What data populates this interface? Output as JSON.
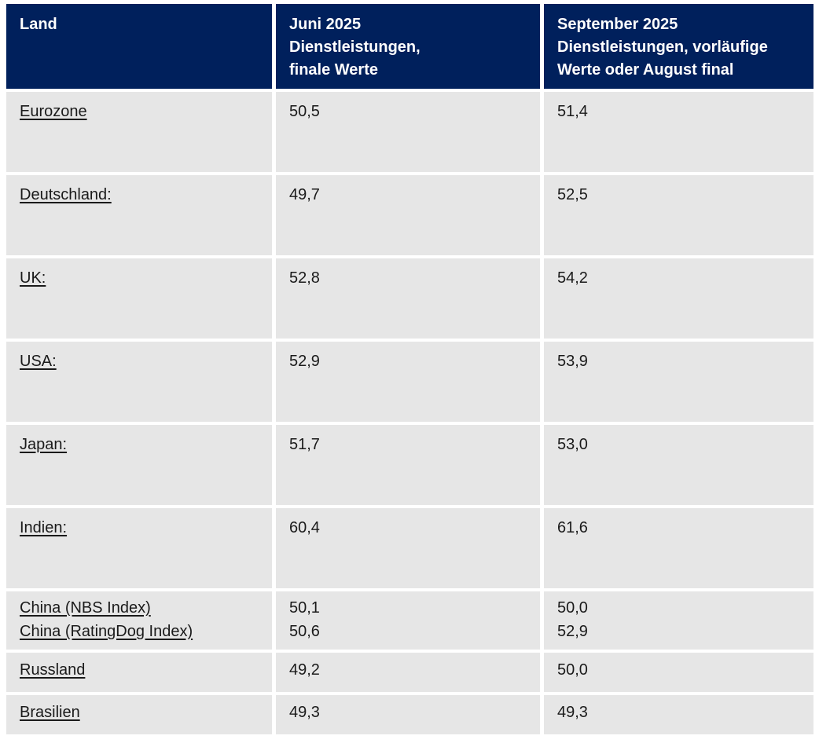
{
  "colors": {
    "header_bg": "#00205C",
    "header_text": "#FFFFFF",
    "row_bg": "#E6E6E6",
    "body_text": "#1A1A1A"
  },
  "table": {
    "columns": [
      "Land",
      "Juni 2025\nDienstleistungen,\nfinale Werte",
      "September 2025\nDienstleistungen, vorläufige\nWerte oder August final"
    ],
    "rows": [
      {
        "country": [
          "Eurozone"
        ],
        "juni": [
          "50,5"
        ],
        "september": [
          "51,4"
        ]
      },
      {
        "country": [
          "Deutschland:"
        ],
        "juni": [
          "49,7"
        ],
        "september": [
          "52,5"
        ]
      },
      {
        "country": [
          "UK:"
        ],
        "juni": [
          "52,8"
        ],
        "september": [
          "54,2"
        ]
      },
      {
        "country": [
          "USA:"
        ],
        "juni": [
          "52,9"
        ],
        "september": [
          "53,9"
        ]
      },
      {
        "country": [
          "Japan:"
        ],
        "juni": [
          "51,7"
        ],
        "september": [
          "53,0"
        ]
      },
      {
        "country": [
          "Indien:"
        ],
        "juni": [
          "60,4"
        ],
        "september": [
          "61,6"
        ]
      },
      {
        "country": [
          "China (NBS Index)",
          "China (RatingDog Index)"
        ],
        "juni": [
          "50,1",
          "50,6"
        ],
        "september": [
          "50,0",
          "52,9"
        ]
      },
      {
        "country": [
          "Russland"
        ],
        "juni": [
          "49,2"
        ],
        "september": [
          "50,0"
        ]
      },
      {
        "country": [
          "Brasilien"
        ],
        "juni": [
          "49,3"
        ],
        "september": [
          "49,3"
        ]
      }
    ]
  },
  "chart_data": {
    "type": "table",
    "columns": [
      "Land",
      "Juni 2025 Dienstleistungen, finale Werte",
      "September 2025 Dienstleistungen, vorläufige Werte oder August final"
    ],
    "rows": [
      [
        "Eurozone",
        50.5,
        51.4
      ],
      [
        "Deutschland",
        49.7,
        52.5
      ],
      [
        "UK",
        52.8,
        54.2
      ],
      [
        "USA",
        52.9,
        53.9
      ],
      [
        "Japan",
        51.7,
        53.0
      ],
      [
        "Indien",
        60.4,
        61.6
      ],
      [
        "China (NBS Index)",
        50.1,
        50.0
      ],
      [
        "China (RatingDog Index)",
        50.6,
        52.9
      ],
      [
        "Russland",
        49.2,
        50.0
      ],
      [
        "Brasilien",
        49.3,
        49.3
      ]
    ]
  }
}
